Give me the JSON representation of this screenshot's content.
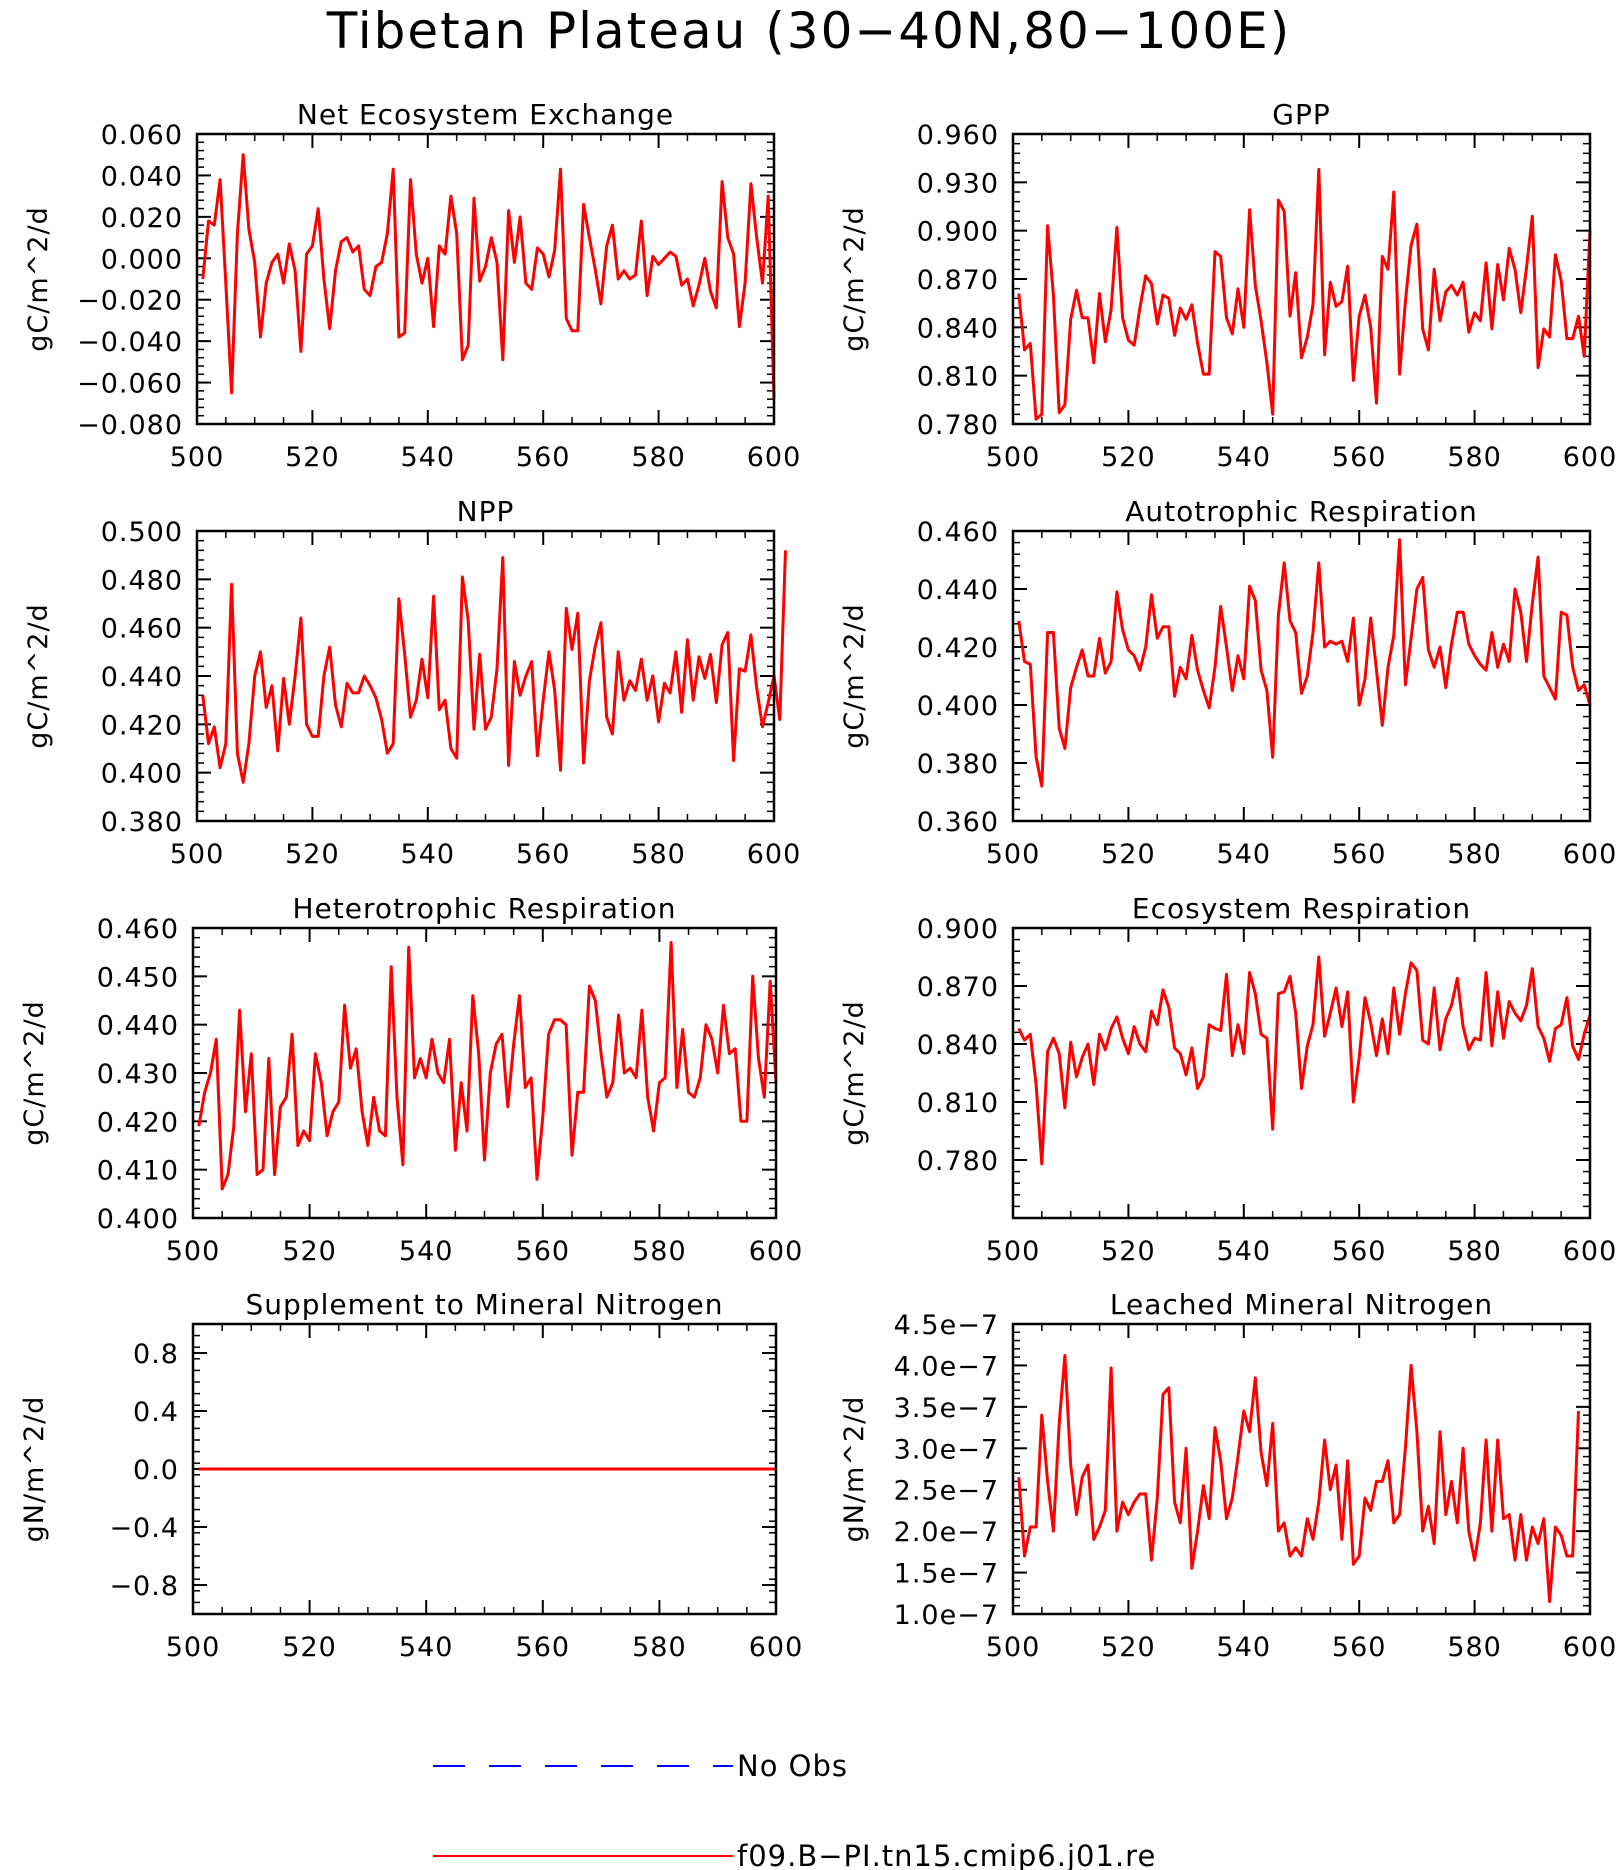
{
  "title": "Tibetan Plateau (30−40N,80−100E)",
  "colors": {
    "model": "#ff0000",
    "obs": "#0000ff",
    "axis": "#000000",
    "background": "#ffffff"
  },
  "legend": {
    "position": "bottom-center",
    "items": [
      {
        "label": "No Obs",
        "color": "#0000ff",
        "style": "dashed"
      },
      {
        "label": "f09.B−PI.tn15.cmip6.j01.re",
        "color": "#ff0000",
        "style": "solid"
      }
    ]
  },
  "chart_data": [
    {
      "type": "line",
      "title": "Net Ecosystem Exchange",
      "ylabel": "gC/m^2/d",
      "xlim": [
        500,
        600
      ],
      "ylim": [
        -0.08,
        0.06
      ],
      "xticks": [
        "500",
        "520",
        "540",
        "560",
        "580",
        "600"
      ],
      "yticks": [
        "−0.080",
        "−0.060",
        "−0.040",
        "−0.020",
        "0.000",
        "0.020",
        "0.040",
        "0.060"
      ],
      "series": [
        {
          "color": "#ff0000",
          "x_start": 501,
          "values": [
            -0.01,
            0.018,
            0.016,
            0.038,
            -0.012,
            -0.065,
            0.012,
            0.05,
            0.014,
            -0.002,
            -0.038,
            -0.012,
            -0.002,
            0.002,
            -0.012,
            0.007,
            -0.006,
            -0.045,
            0.002,
            0.006,
            0.024,
            -0.01,
            -0.034,
            -0.006,
            0.008,
            0.01,
            0.003,
            0.006,
            -0.015,
            -0.018,
            -0.004,
            -0.002,
            0.012,
            0.043,
            -0.038,
            -0.036,
            0.038,
            0.002,
            -0.012,
            0.0,
            -0.033,
            0.006,
            0.002,
            0.03,
            0.012,
            -0.049,
            -0.042,
            0.029,
            -0.011,
            -0.004,
            0.01,
            -0.002,
            -0.049,
            0.023,
            -0.002,
            0.02,
            -0.012,
            -0.015,
            0.005,
            0.002,
            -0.009,
            0.004,
            0.043,
            -0.029,
            -0.035,
            -0.035,
            0.026,
            0.01,
            -0.005,
            -0.022,
            0.006,
            0.016,
            -0.01,
            -0.006,
            -0.01,
            -0.008,
            0.018,
            -0.018,
            0.001,
            -0.003,
            0.0,
            0.003,
            0.001,
            -0.013,
            -0.01,
            -0.023,
            -0.013,
            0.0,
            -0.016,
            -0.024,
            0.037,
            0.01,
            0.002,
            -0.033,
            -0.012,
            0.036,
            0.01,
            -0.012,
            0.03,
            -0.068
          ]
        }
      ]
    },
    {
      "type": "line",
      "title": "GPP",
      "ylabel": "gC/m^2/d",
      "xlim": [
        500,
        600
      ],
      "ylim": [
        0.78,
        0.96
      ],
      "xticks": [
        "500",
        "520",
        "540",
        "560",
        "580",
        "600"
      ],
      "yticks": [
        "0.780",
        "0.810",
        "0.840",
        "0.870",
        "0.900",
        "0.930",
        "0.960"
      ],
      "series": [
        {
          "color": "#ff0000",
          "x_start": 501,
          "values": [
            0.861,
            0.826,
            0.83,
            0.783,
            0.786,
            0.903,
            0.86,
            0.787,
            0.792,
            0.845,
            0.863,
            0.846,
            0.846,
            0.818,
            0.861,
            0.831,
            0.851,
            0.902,
            0.846,
            0.832,
            0.829,
            0.852,
            0.872,
            0.867,
            0.842,
            0.86,
            0.858,
            0.835,
            0.852,
            0.845,
            0.854,
            0.83,
            0.811,
            0.811,
            0.887,
            0.884,
            0.846,
            0.836,
            0.864,
            0.84,
            0.913,
            0.866,
            0.844,
            0.818,
            0.786,
            0.919,
            0.912,
            0.847,
            0.874,
            0.821,
            0.834,
            0.854,
            0.938,
            0.823,
            0.868,
            0.853,
            0.856,
            0.878,
            0.807,
            0.847,
            0.86,
            0.84,
            0.793,
            0.884,
            0.876,
            0.924,
            0.811,
            0.856,
            0.891,
            0.904,
            0.839,
            0.826,
            0.876,
            0.844,
            0.862,
            0.866,
            0.86,
            0.868,
            0.837,
            0.849,
            0.844,
            0.88,
            0.839,
            0.879,
            0.857,
            0.889,
            0.876,
            0.849,
            0.877,
            0.909,
            0.815,
            0.839,
            0.834,
            0.885,
            0.869,
            0.833,
            0.833,
            0.847,
            0.822,
            0.9
          ]
        }
      ]
    },
    {
      "type": "line",
      "title": "NPP",
      "ylabel": "gC/m^2/d",
      "xlim": [
        500,
        600
      ],
      "ylim": [
        0.38,
        0.5
      ],
      "xticks": [
        "500",
        "520",
        "540",
        "560",
        "580",
        "600"
      ],
      "yticks": [
        "0.380",
        "0.400",
        "0.420",
        "0.440",
        "0.460",
        "0.480",
        "0.500"
      ],
      "series": [
        {
          "color": "#ff0000",
          "x_start": 501,
          "values": [
            0.432,
            0.412,
            0.419,
            0.402,
            0.412,
            0.478,
            0.408,
            0.396,
            0.412,
            0.44,
            0.45,
            0.427,
            0.436,
            0.409,
            0.439,
            0.42,
            0.44,
            0.464,
            0.42,
            0.415,
            0.415,
            0.44,
            0.452,
            0.428,
            0.419,
            0.437,
            0.433,
            0.433,
            0.44,
            0.436,
            0.431,
            0.422,
            0.408,
            0.412,
            0.472,
            0.449,
            0.423,
            0.43,
            0.447,
            0.431,
            0.473,
            0.426,
            0.43,
            0.41,
            0.406,
            0.481,
            0.463,
            0.418,
            0.449,
            0.418,
            0.423,
            0.443,
            0.489,
            0.403,
            0.446,
            0.432,
            0.44,
            0.446,
            0.407,
            0.43,
            0.45,
            0.434,
            0.401,
            0.468,
            0.451,
            0.466,
            0.404,
            0.438,
            0.452,
            0.462,
            0.423,
            0.416,
            0.45,
            0.43,
            0.438,
            0.434,
            0.447,
            0.43,
            0.44,
            0.421,
            0.437,
            0.433,
            0.45,
            0.425,
            0.455,
            0.43,
            0.448,
            0.439,
            0.449,
            0.429,
            0.453,
            0.458,
            0.405,
            0.443,
            0.442,
            0.457,
            0.435,
            0.419,
            0.429,
            0.44,
            0.422,
            0.492
          ]
        }
      ]
    },
    {
      "type": "line",
      "title": "Autotrophic Respiration",
      "ylabel": "gC/m^2/d",
      "xlim": [
        500,
        600
      ],
      "ylim": [
        0.36,
        0.46
      ],
      "xticks": [
        "500",
        "520",
        "540",
        "560",
        "580",
        "600"
      ],
      "yticks": [
        "0.360",
        "0.380",
        "0.400",
        "0.420",
        "0.440",
        "0.460"
      ],
      "series": [
        {
          "color": "#ff0000",
          "x_start": 501,
          "values": [
            0.429,
            0.415,
            0.414,
            0.382,
            0.372,
            0.425,
            0.425,
            0.392,
            0.385,
            0.406,
            0.413,
            0.419,
            0.41,
            0.41,
            0.423,
            0.411,
            0.415,
            0.439,
            0.426,
            0.419,
            0.417,
            0.412,
            0.42,
            0.438,
            0.423,
            0.427,
            0.427,
            0.403,
            0.413,
            0.409,
            0.424,
            0.412,
            0.405,
            0.399,
            0.413,
            0.434,
            0.42,
            0.405,
            0.417,
            0.409,
            0.441,
            0.436,
            0.412,
            0.405,
            0.382,
            0.431,
            0.449,
            0.429,
            0.425,
            0.404,
            0.41,
            0.425,
            0.449,
            0.42,
            0.422,
            0.421,
            0.422,
            0.415,
            0.43,
            0.4,
            0.409,
            0.43,
            0.412,
            0.393,
            0.413,
            0.424,
            0.457,
            0.407,
            0.423,
            0.44,
            0.444,
            0.419,
            0.413,
            0.42,
            0.406,
            0.421,
            0.432,
            0.432,
            0.421,
            0.417,
            0.414,
            0.412,
            0.425,
            0.413,
            0.421,
            0.415,
            0.44,
            0.432,
            0.415,
            0.435,
            0.451,
            0.41,
            0.406,
            0.402,
            0.432,
            0.431,
            0.413,
            0.405,
            0.407,
            0.4
          ]
        }
      ]
    },
    {
      "type": "line",
      "title": "Heterotrophic Respiration",
      "ylabel": "gC/m^2/d",
      "xlim": [
        500,
        600
      ],
      "ylim": [
        0.4,
        0.46
      ],
      "xticks": [
        "500",
        "520",
        "540",
        "560",
        "580",
        "600"
      ],
      "yticks": [
        "0.400",
        "0.410",
        "0.420",
        "0.430",
        "0.440",
        "0.450",
        "0.460"
      ],
      "series": [
        {
          "color": "#ff0000",
          "x_start": 501,
          "values": [
            0.419,
            0.426,
            0.43,
            0.437,
            0.406,
            0.409,
            0.419,
            0.443,
            0.422,
            0.434,
            0.409,
            0.41,
            0.433,
            0.409,
            0.423,
            0.425,
            0.438,
            0.415,
            0.418,
            0.416,
            0.434,
            0.428,
            0.417,
            0.422,
            0.424,
            0.444,
            0.431,
            0.435,
            0.422,
            0.415,
            0.425,
            0.418,
            0.417,
            0.452,
            0.425,
            0.411,
            0.456,
            0.429,
            0.433,
            0.429,
            0.437,
            0.43,
            0.428,
            0.437,
            0.414,
            0.428,
            0.418,
            0.446,
            0.434,
            0.412,
            0.43,
            0.436,
            0.438,
            0.423,
            0.436,
            0.446,
            0.427,
            0.429,
            0.408,
            0.421,
            0.438,
            0.441,
            0.441,
            0.44,
            0.413,
            0.426,
            0.426,
            0.448,
            0.445,
            0.434,
            0.425,
            0.428,
            0.442,
            0.43,
            0.431,
            0.429,
            0.443,
            0.425,
            0.418,
            0.428,
            0.429,
            0.457,
            0.427,
            0.439,
            0.426,
            0.425,
            0.429,
            0.44,
            0.437,
            0.43,
            0.444,
            0.434,
            0.435,
            0.42,
            0.42,
            0.45,
            0.433,
            0.425,
            0.449,
            0.428
          ]
        }
      ]
    },
    {
      "type": "line",
      "title": "Ecosystem Respiration",
      "ylabel": "gC/m^2/d",
      "xlim": [
        500,
        600
      ],
      "ylim": [
        0.75,
        0.9
      ],
      "xticks": [
        "500",
        "520",
        "540",
        "560",
        "580",
        "600"
      ],
      "yticks": [
        "0.780",
        "0.810",
        "0.840",
        "0.870",
        "0.900"
      ],
      "series": [
        {
          "color": "#ff0000",
          "x_start": 501,
          "values": [
            0.848,
            0.842,
            0.845,
            0.819,
            0.778,
            0.836,
            0.843,
            0.835,
            0.807,
            0.841,
            0.823,
            0.833,
            0.84,
            0.819,
            0.845,
            0.837,
            0.848,
            0.854,
            0.843,
            0.835,
            0.849,
            0.84,
            0.836,
            0.857,
            0.85,
            0.868,
            0.859,
            0.838,
            0.835,
            0.824,
            0.838,
            0.817,
            0.823,
            0.85,
            0.848,
            0.847,
            0.876,
            0.834,
            0.85,
            0.835,
            0.877,
            0.866,
            0.845,
            0.843,
            0.796,
            0.866,
            0.867,
            0.875,
            0.856,
            0.817,
            0.839,
            0.85,
            0.885,
            0.844,
            0.856,
            0.869,
            0.849,
            0.867,
            0.81,
            0.833,
            0.864,
            0.851,
            0.834,
            0.853,
            0.835,
            0.869,
            0.845,
            0.866,
            0.882,
            0.878,
            0.842,
            0.84,
            0.869,
            0.837,
            0.853,
            0.86,
            0.874,
            0.849,
            0.837,
            0.843,
            0.842,
            0.877,
            0.839,
            0.867,
            0.843,
            0.862,
            0.856,
            0.852,
            0.86,
            0.879,
            0.849,
            0.843,
            0.831,
            0.848,
            0.85,
            0.864,
            0.839,
            0.832,
            0.845,
            0.855
          ]
        }
      ]
    },
    {
      "type": "line",
      "title": "Supplement to Mineral Nitrogen",
      "ylabel": "gN/m^2/d",
      "xlim": [
        500,
        600
      ],
      "ylim": [
        -1.0,
        1.0
      ],
      "xticks": [
        "500",
        "520",
        "540",
        "560",
        "580",
        "600"
      ],
      "yticks": [
        "−0.8",
        "−0.4",
        "0.0",
        "0.4",
        "0.8"
      ],
      "series": [
        {
          "color": "#ff0000",
          "x_start": 501,
          "values": [
            0,
            0
          ]
        }
      ]
    },
    {
      "type": "line",
      "title": "Leached Mineral Nitrogen",
      "ylabel": "gN/m^2/d",
      "xlim": [
        500,
        600
      ],
      "ylim": [
        1e-07,
        4.5e-07
      ],
      "xticks": [
        "500",
        "520",
        "540",
        "560",
        "580",
        "600"
      ],
      "yticks": [
        "1.0e−7",
        "1.5e−7",
        "2.0e−7",
        "2.5e−7",
        "3.0e−7",
        "3.5e−7",
        "4.0e−7",
        "4.5e−7"
      ],
      "series": [
        {
          "color": "#ff0000",
          "x_start": 501,
          "values": [
            2.65e-07,
            1.7e-07,
            2.05e-07,
            2.05e-07,
            3.4e-07,
            2.6e-07,
            2e-07,
            3.3e-07,
            4.12e-07,
            2.8e-07,
            2.2e-07,
            2.65e-07,
            2.8e-07,
            1.9e-07,
            2.05e-07,
            2.25e-07,
            3.97e-07,
            2e-07,
            2.35e-07,
            2.2e-07,
            2.35e-07,
            2.45e-07,
            2.45e-07,
            1.65e-07,
            2.4e-07,
            3.65e-07,
            3.73e-07,
            2.35e-07,
            2.1e-07,
            3e-07,
            1.55e-07,
            2e-07,
            2.55e-07,
            2.15e-07,
            3.25e-07,
            2.85e-07,
            2.15e-07,
            2.4e-07,
            2.9e-07,
            3.45e-07,
            3.2e-07,
            3.85e-07,
            2.95e-07,
            2.55e-07,
            3.3e-07,
            2e-07,
            2.1e-07,
            1.7e-07,
            1.8e-07,
            1.7e-07,
            2.15e-07,
            1.9e-07,
            2.35e-07,
            3.1e-07,
            2.5e-07,
            2.8e-07,
            1.9e-07,
            2.85e-07,
            1.6e-07,
            1.7e-07,
            2.4e-07,
            2.25e-07,
            2.6e-07,
            2.6e-07,
            2.85e-07,
            2.1e-07,
            2.2e-07,
            3e-07,
            4e-07,
            3.2e-07,
            2e-07,
            2.3e-07,
            1.85e-07,
            3.2e-07,
            2.2e-07,
            2.6e-07,
            2.1e-07,
            3e-07,
            2e-07,
            1.65e-07,
            2.1e-07,
            3.1e-07,
            2e-07,
            3.1e-07,
            2.15e-07,
            2.2e-07,
            1.65e-07,
            2.2e-07,
            1.65e-07,
            2.05e-07,
            1.85e-07,
            2.15e-07,
            1.15e-07,
            2.05e-07,
            1.95e-07,
            1.7e-07,
            1.7e-07,
            3.45e-07
          ]
        }
      ]
    }
  ]
}
